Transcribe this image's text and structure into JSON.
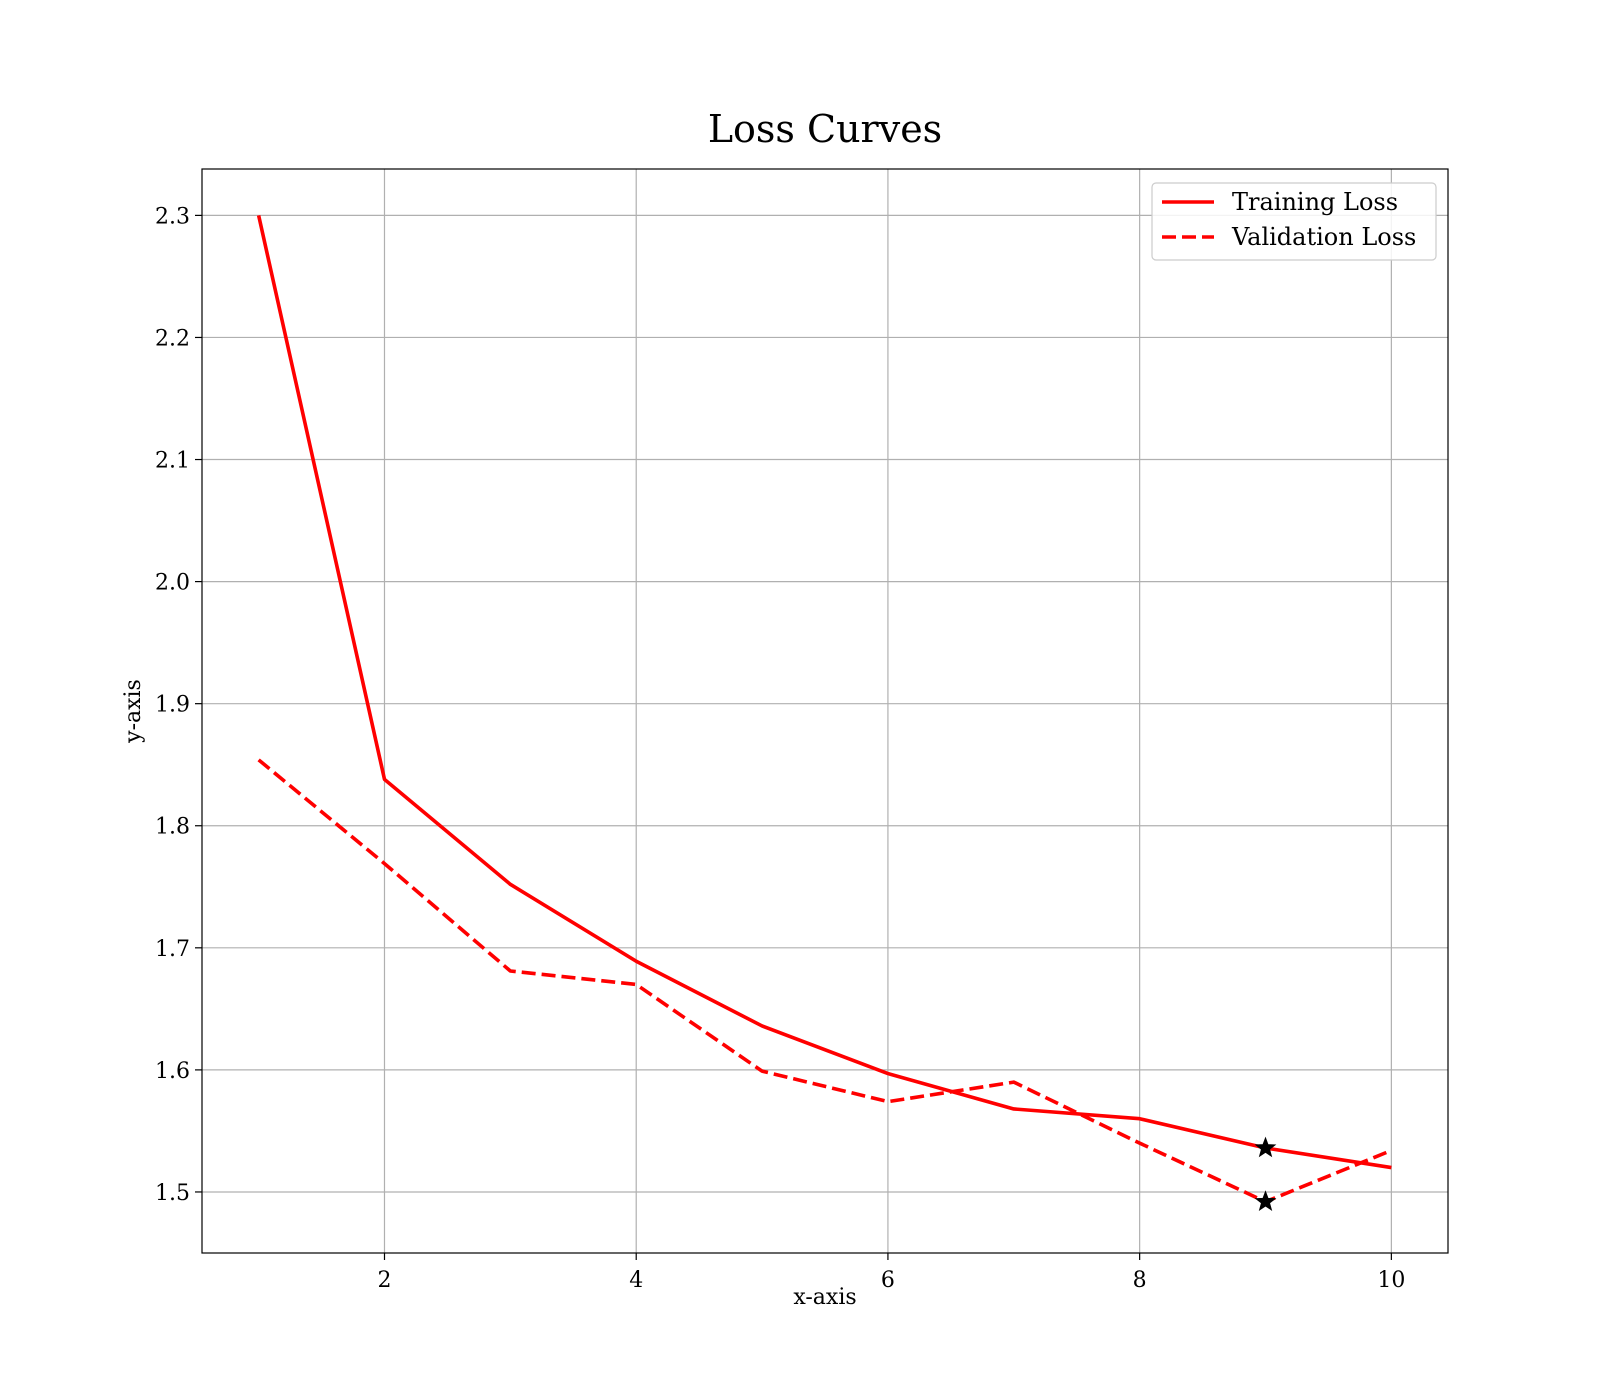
{
  "chart_data": {
    "type": "line",
    "title": "Loss Curves",
    "xlabel": "x-axis",
    "ylabel": "y-axis",
    "xlim": [
      0.55,
      10.45
    ],
    "ylim": [
      1.45,
      2.338
    ],
    "xticks": [
      2,
      4,
      6,
      8,
      10
    ],
    "yticks": [
      1.5,
      1.6,
      1.7,
      1.8,
      1.9,
      2.0,
      2.1,
      2.2,
      2.3
    ],
    "grid": true,
    "legend_position": "top-right",
    "x": [
      1,
      2,
      3,
      4,
      5,
      6,
      7,
      8,
      9,
      10
    ],
    "series": [
      {
        "name": "Training Loss",
        "style": "solid",
        "color": "#ff0000",
        "values": [
          2.3,
          1.838,
          1.752,
          1.689,
          1.636,
          1.597,
          1.568,
          1.56,
          1.536,
          1.52
        ]
      },
      {
        "name": "Validation Loss",
        "style": "dashed",
        "color": "#ff0000",
        "values": [
          1.854,
          1.769,
          1.681,
          1.67,
          1.599,
          1.574,
          1.59,
          1.54,
          1.492,
          1.534
        ]
      }
    ],
    "markers": [
      {
        "series": "Training Loss",
        "x": 9,
        "y": 1.536,
        "symbol": "star",
        "color": "#000000"
      },
      {
        "series": "Validation Loss",
        "x": 9,
        "y": 1.492,
        "symbol": "star",
        "color": "#000000"
      }
    ]
  }
}
